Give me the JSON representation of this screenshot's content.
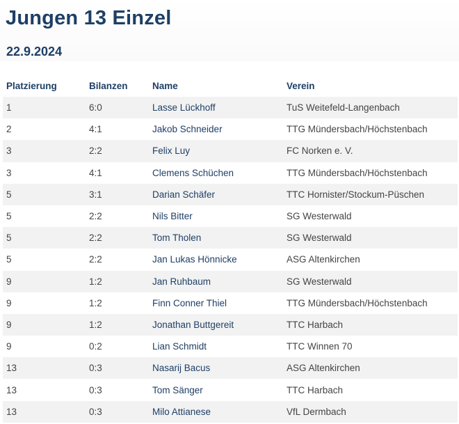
{
  "header": {
    "title": "Jungen 13 Einzel",
    "date": "22.9.2024"
  },
  "table": {
    "columns": [
      "Platzierung",
      "Bilanzen",
      "Name",
      "Verein"
    ],
    "rows": [
      {
        "place": "1",
        "record": "6:0",
        "name": "Lasse Lückhoff",
        "club": "TuS Weitefeld-Langenbach"
      },
      {
        "place": "2",
        "record": "4:1",
        "name": "Jakob Schneider",
        "club": "TTG Mündersbach/Höchstenbach"
      },
      {
        "place": "3",
        "record": "2:2",
        "name": "Felix Luy",
        "club": "FC Norken e. V."
      },
      {
        "place": "3",
        "record": "4:1",
        "name": "Clemens Schüchen",
        "club": "TTG Mündersbach/Höchstenbach"
      },
      {
        "place": "5",
        "record": "3:1",
        "name": "Darian Schäfer",
        "club": "TTC Hornister/Stockum-Püschen"
      },
      {
        "place": "5",
        "record": "2:2",
        "name": "Nils Bitter",
        "club": "SG Westerwald"
      },
      {
        "place": "5",
        "record": "2:2",
        "name": "Tom Tholen",
        "club": "SG Westerwald"
      },
      {
        "place": "5",
        "record": "2:2",
        "name": "Jan Lukas Hönnicke",
        "club": "ASG Altenkirchen"
      },
      {
        "place": "9",
        "record": "1:2",
        "name": "Jan Ruhbaum",
        "club": "SG Westerwald"
      },
      {
        "place": "9",
        "record": "1:2",
        "name": "Finn Conner Thiel",
        "club": "TTG Mündersbach/Höchstenbach"
      },
      {
        "place": "9",
        "record": "1:2",
        "name": "Jonathan Buttgereit",
        "club": "TTC Harbach"
      },
      {
        "place": "9",
        "record": "0:2",
        "name": "Lian Schmidt",
        "club": "TTC Winnen 70"
      },
      {
        "place": "13",
        "record": "0:3",
        "name": "Nasarij Bacus",
        "club": "ASG Altenkirchen"
      },
      {
        "place": "13",
        "record": "0:3",
        "name": "Tom Sänger",
        "club": "TTC Harbach"
      },
      {
        "place": "13",
        "record": "0:3",
        "name": "Milo Attianese",
        "club": "VfL Dermbach"
      }
    ]
  }
}
